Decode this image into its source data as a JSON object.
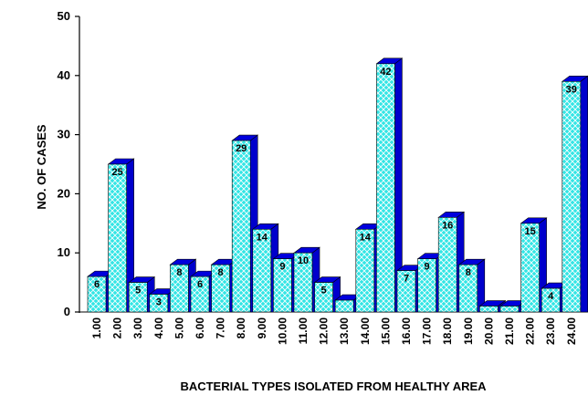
{
  "chart_data": {
    "type": "bar",
    "categories": [
      "1.00",
      "2.00",
      "3.00",
      "4.00",
      "5.00",
      "6.00",
      "7.00",
      "8.00",
      "9.00",
      "10.00",
      "11.00",
      "12.00",
      "13.00",
      "14.00",
      "15.00",
      "16.00",
      "17.00",
      "18.00",
      "19.00",
      "20.00",
      "21.00",
      "22.00",
      "23.00",
      "24.00"
    ],
    "values": [
      6,
      25,
      5,
      3,
      8,
      6,
      8,
      29,
      14,
      9,
      10,
      5,
      2,
      14,
      42,
      7,
      9,
      16,
      8,
      1,
      1,
      15,
      4,
      39
    ],
    "data_labels": [
      "6",
      "25",
      "5",
      "3",
      "8",
      "6",
      "8",
      "29",
      "14",
      "9",
      "10",
      "5",
      "",
      "14",
      "42",
      "7",
      "9",
      "16",
      "8",
      "",
      "",
      "15",
      "4",
      "39"
    ],
    "title": "",
    "xlabel": "BACTERIAL TYPES ISOLATED FROM HEALTHY AREA",
    "ylabel": "NO. OF CASES",
    "ylim": [
      0,
      50
    ],
    "yticks": [
      "0",
      "10",
      "20",
      "30",
      "40",
      "50"
    ],
    "grid": false,
    "style": "3d-bar",
    "colors": {
      "front": "#33e5e5",
      "side": "#0000cc",
      "top": "#0000dd",
      "hatch": "#ffffff",
      "outline": "#000000"
    }
  }
}
